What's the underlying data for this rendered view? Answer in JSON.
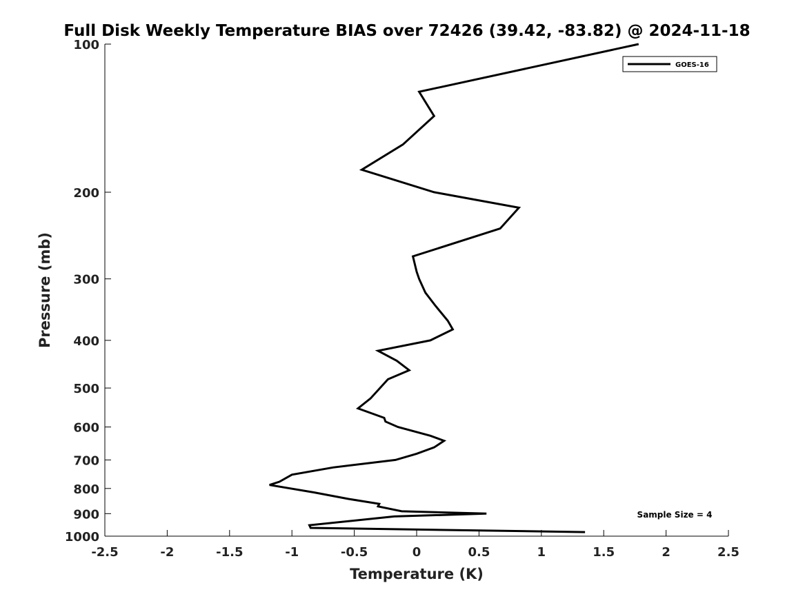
{
  "chart_data": {
    "type": "line",
    "title": "Full Disk Weekly Temperature BIAS over 72426 (39.42, -83.82) @ 2024-11-18",
    "xlabel": "Temperature (K)",
    "ylabel": "Pressure (mb)",
    "xlim": [
      -2.5,
      2.5
    ],
    "ylim": [
      100,
      1000
    ],
    "y_scale": "log",
    "y_reversed": true,
    "x_ticks": [
      "-2.5",
      "-2",
      "-1.5",
      "-1",
      "-0.5",
      "0",
      "0.5",
      "1",
      "1.5",
      "2",
      "2.5"
    ],
    "y_ticks": [
      "100",
      "200",
      "300",
      "400",
      "500",
      "600",
      "700",
      "800",
      "900",
      "1000"
    ],
    "grid": false,
    "legend": {
      "position": "top-right",
      "entries": [
        "GOES-16"
      ]
    },
    "annotation": "Sample Size = 4",
    "series": [
      {
        "name": "GOES-16",
        "color": "#000000",
        "points": [
          {
            "x": 1.78,
            "p": 100
          },
          {
            "x": 0.02,
            "p": 125
          },
          {
            "x": 0.14,
            "p": 140
          },
          {
            "x": -0.11,
            "p": 160
          },
          {
            "x": -0.44,
            "p": 180
          },
          {
            "x": 0.14,
            "p": 200
          },
          {
            "x": 0.82,
            "p": 215
          },
          {
            "x": 0.67,
            "p": 237
          },
          {
            "x": -0.03,
            "p": 270
          },
          {
            "x": 0.0,
            "p": 290
          },
          {
            "x": 0.02,
            "p": 300
          },
          {
            "x": 0.07,
            "p": 320
          },
          {
            "x": 0.15,
            "p": 340
          },
          {
            "x": 0.25,
            "p": 365
          },
          {
            "x": 0.29,
            "p": 380
          },
          {
            "x": 0.11,
            "p": 400
          },
          {
            "x": -0.31,
            "p": 420
          },
          {
            "x": -0.16,
            "p": 440
          },
          {
            "x": -0.06,
            "p": 460
          },
          {
            "x": -0.23,
            "p": 480
          },
          {
            "x": -0.37,
            "p": 525
          },
          {
            "x": -0.47,
            "p": 550
          },
          {
            "x": -0.26,
            "p": 575
          },
          {
            "x": -0.25,
            "p": 585
          },
          {
            "x": -0.15,
            "p": 600
          },
          {
            "x": 0.11,
            "p": 625
          },
          {
            "x": 0.22,
            "p": 640
          },
          {
            "x": 0.14,
            "p": 660
          },
          {
            "x": 0.0,
            "p": 680
          },
          {
            "x": -0.17,
            "p": 700
          },
          {
            "x": -0.67,
            "p": 725
          },
          {
            "x": -1.0,
            "p": 750
          },
          {
            "x": -1.1,
            "p": 775
          },
          {
            "x": -1.18,
            "p": 787
          },
          {
            "x": -0.82,
            "p": 815
          },
          {
            "x": -0.55,
            "p": 840
          },
          {
            "x": -0.3,
            "p": 860
          },
          {
            "x": -0.31,
            "p": 870
          },
          {
            "x": -0.12,
            "p": 890
          },
          {
            "x": 0.56,
            "p": 900
          },
          {
            "x": -0.18,
            "p": 912
          },
          {
            "x": -0.86,
            "p": 950
          },
          {
            "x": -0.85,
            "p": 962
          },
          {
            "x": 1.35,
            "p": 981
          }
        ]
      }
    ]
  }
}
